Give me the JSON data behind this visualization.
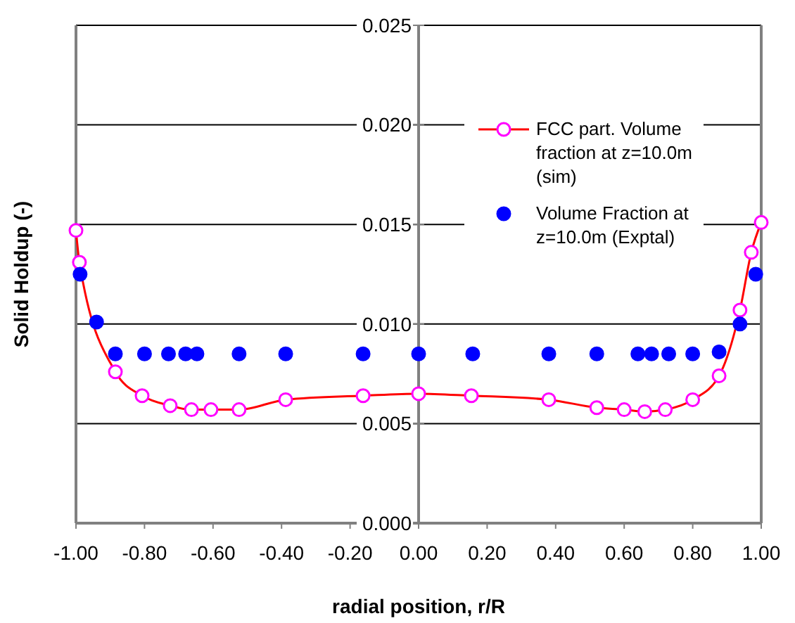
{
  "chart_data": {
    "type": "line",
    "xlabel": "radial position, r/R",
    "ylabel": "Solid Holdup (-)",
    "xlim": [
      -1,
      1
    ],
    "xticks": [
      {
        "value": -1,
        "label": "-1.00"
      },
      {
        "value": -0.8,
        "label": "-0.80"
      },
      {
        "value": -0.6,
        "label": "-0.60"
      },
      {
        "value": -0.4,
        "label": "-0.40"
      },
      {
        "value": -0.2,
        "label": "-0.20"
      },
      {
        "value": 0,
        "label": "0.00"
      },
      {
        "value": 0.2,
        "label": "0.20"
      },
      {
        "value": 0.4,
        "label": "0.40"
      },
      {
        "value": 0.6,
        "label": "0.60"
      },
      {
        "value": 0.8,
        "label": "0.80"
      },
      {
        "value": 1,
        "label": "1.00"
      }
    ],
    "ylim": [
      0,
      0.025
    ],
    "yticks": [
      {
        "value": 0,
        "label": "0.000"
      },
      {
        "value": 0.005,
        "label": "0.005"
      },
      {
        "value": 0.01,
        "label": "0.010"
      },
      {
        "value": 0.015,
        "label": "0.015"
      },
      {
        "value": 0.02,
        "label": "0.020"
      },
      {
        "value": 0.025,
        "label": "0.025"
      }
    ],
    "grid": "y",
    "legend": "top right",
    "marker": "circle",
    "series": [
      {
        "name": "FCC part. Volume fraction at z=10.0m (sim)",
        "color": "#ff0000",
        "colors": [
          "#ff00ff",
          "#ff00ff",
          "#ff00ff",
          "#ff00ff",
          "#ff00ff",
          "#ff00ff",
          "#ff00ff",
          "#ff00ff",
          "#ff00ff",
          "#ff00ff",
          "#ff00ff",
          "#ff00ff",
          "#ff00ff",
          "#ff00ff",
          "#ff00ff",
          "#ff00ff",
          "#ff00ff",
          "#ff00ff",
          "#ff00ff",
          "#ff00ff",
          "#ff00ff",
          "#ff00ff"
        ],
        "x": [
          -1.0,
          -0.99,
          -0.885,
          -0.807,
          -0.725,
          -0.663,
          -0.606,
          -0.524,
          -0.388,
          -0.162,
          0,
          0.154,
          0.38,
          0.52,
          0.6,
          0.66,
          0.72,
          0.8,
          0.877,
          0.938,
          0.971,
          1.0
        ],
        "values": [
          0.0147,
          0.0131,
          0.0076,
          0.0064,
          0.0059,
          0.0057,
          0.0057,
          0.0057,
          0.0062,
          0.0064,
          0.0065,
          0.0064,
          0.0062,
          0.0058,
          0.0057,
          0.0056,
          0.0057,
          0.0062,
          0.0074,
          0.0107,
          0.0136,
          0.0151
        ]
      },
      {
        "name": "Volume Fraction at z=10.0m (Exptal)",
        "type": "scatter",
        "color": "#0000ff",
        "x": [
          -0.988,
          -0.94,
          -0.885,
          -0.8,
          -0.73,
          -0.68,
          -0.647,
          -0.524,
          -0.388,
          -0.162,
          0,
          0.158,
          0.38,
          0.52,
          0.64,
          0.68,
          0.73,
          0.8,
          0.877,
          0.938,
          0.984
        ],
        "values": [
          0.0125,
          0.0101,
          0.0085,
          0.0085,
          0.0085,
          0.0085,
          0.0085,
          0.0085,
          0.0085,
          0.0085,
          0.0085,
          0.0085,
          0.0085,
          0.0085,
          0.0085,
          0.0085,
          0.0085,
          0.0085,
          0.0086,
          0.01,
          0.0125
        ]
      }
    ]
  }
}
